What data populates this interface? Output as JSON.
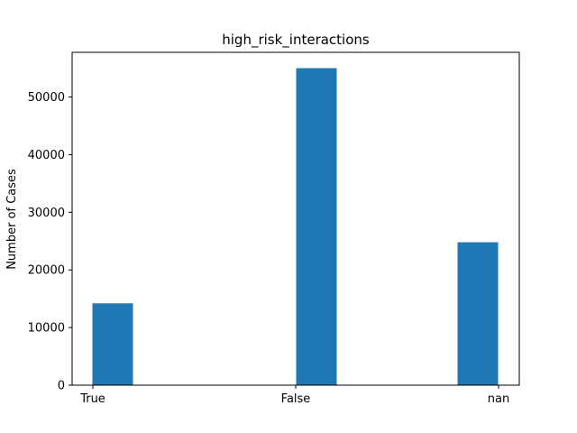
{
  "chart_data": {
    "type": "bar",
    "title": "high_risk_interactions",
    "xlabel": "",
    "ylabel": "Number of Cases",
    "categories": [
      "True",
      "False",
      "nan"
    ],
    "values": [
      14200,
      55000,
      24800
    ],
    "ylim": [
      0,
      57750
    ],
    "yticks": [
      0,
      10000,
      20000,
      30000,
      40000,
      50000
    ],
    "ytick_labels": [
      "0",
      "10000",
      "20000",
      "30000",
      "40000",
      "50000"
    ],
    "grid": false,
    "legend": "none",
    "bar_color": "#1f77b4"
  }
}
